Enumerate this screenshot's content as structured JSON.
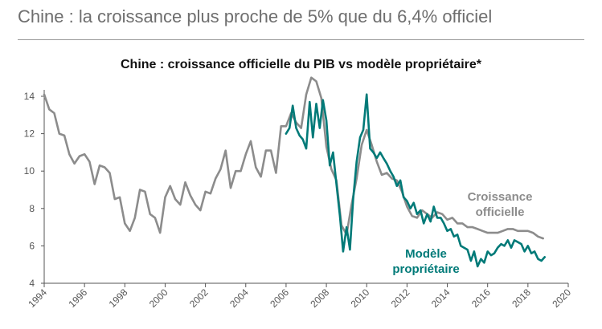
{
  "header": {
    "title": "Chine : la croissance plus proche de 5% que du 6,4% officiel"
  },
  "chart_data": {
    "type": "line",
    "title": "Chine : croissance officielle du PIB vs modèle propriétaire*",
    "xlabel": "",
    "ylabel": "",
    "xlim": [
      1994,
      2020
    ],
    "ylim": [
      4,
      14
    ],
    "x_ticks": [
      "1994",
      "1996",
      "1998",
      "2000",
      "2002",
      "2004",
      "2006",
      "2008",
      "2010",
      "2012",
      "2014",
      "2016",
      "2018",
      "2020"
    ],
    "y_ticks": [
      "4",
      "6",
      "8",
      "10",
      "12",
      "14"
    ],
    "grid": false,
    "colors": {
      "official": "#8c8c8c",
      "model": "#007a78",
      "axis": "#555555"
    },
    "series": [
      {
        "name": "Croissance officielle",
        "label_lines": [
          "Croissance",
          "officielle"
        ],
        "x": [
          1994.0,
          1994.25,
          1994.5,
          1994.75,
          1995.0,
          1995.25,
          1995.5,
          1995.75,
          1996.0,
          1996.25,
          1996.5,
          1996.75,
          1997.0,
          1997.25,
          1997.5,
          1997.75,
          1998.0,
          1998.25,
          1998.5,
          1998.75,
          1999.0,
          1999.25,
          1999.5,
          1999.75,
          2000.0,
          2000.25,
          2000.5,
          2000.75,
          2001.0,
          2001.25,
          2001.5,
          2001.75,
          2002.0,
          2002.25,
          2002.5,
          2002.75,
          2003.0,
          2003.25,
          2003.5,
          2003.75,
          2004.0,
          2004.25,
          2004.5,
          2004.75,
          2005.0,
          2005.25,
          2005.5,
          2005.75,
          2006.0,
          2006.25,
          2006.5,
          2006.75,
          2007.0,
          2007.25,
          2007.5,
          2007.75,
          2008.0,
          2008.25,
          2008.5,
          2008.75,
          2009.0,
          2009.25,
          2009.5,
          2009.75,
          2010.0,
          2010.25,
          2010.5,
          2010.75,
          2011.0,
          2011.25,
          2011.5,
          2011.75,
          2012.0,
          2012.25,
          2012.5,
          2012.75,
          2013.0,
          2013.25,
          2013.5,
          2013.75,
          2014.0,
          2014.25,
          2014.5,
          2014.75,
          2015.0,
          2015.25,
          2015.5,
          2015.75,
          2016.0,
          2016.25,
          2016.5,
          2016.75,
          2017.0,
          2017.25,
          2017.5,
          2017.75,
          2018.0,
          2018.25,
          2018.5,
          2018.75
        ],
        "values": [
          14.1,
          13.3,
          13.1,
          12.0,
          11.9,
          10.9,
          10.4,
          10.8,
          10.9,
          10.5,
          9.3,
          10.3,
          10.2,
          9.9,
          8.5,
          8.6,
          7.2,
          6.8,
          7.5,
          9.0,
          8.9,
          7.7,
          7.5,
          6.7,
          8.6,
          9.2,
          8.5,
          8.2,
          9.4,
          8.7,
          8.2,
          7.9,
          8.9,
          8.8,
          9.6,
          10.1,
          11.1,
          9.1,
          10.0,
          10.0,
          10.9,
          11.6,
          10.2,
          9.7,
          11.1,
          11.1,
          9.9,
          12.4,
          12.4,
          13.1,
          12.6,
          12.3,
          14.1,
          15.0,
          14.8,
          13.9,
          11.3,
          10.1,
          9.5,
          7.1,
          6.6,
          8.2,
          9.6,
          11.4,
          12.2,
          11.4,
          10.5,
          9.8,
          9.9,
          9.6,
          9.5,
          8.9,
          8.1,
          7.6,
          7.5,
          7.9,
          7.7,
          7.5,
          7.8,
          7.7,
          7.4,
          7.5,
          7.2,
          7.2,
          7.0,
          7.0,
          6.9,
          6.8,
          6.7,
          6.7,
          6.7,
          6.8,
          6.9,
          6.9,
          6.8,
          6.8,
          6.8,
          6.7,
          6.5,
          6.4
        ]
      },
      {
        "name": "Modèle propriétaire",
        "label_lines": [
          "Modèle",
          "propriétaire"
        ],
        "x": [
          2006.0,
          2006.17,
          2006.33,
          2006.5,
          2006.67,
          2006.83,
          2007.0,
          2007.17,
          2007.33,
          2007.5,
          2007.67,
          2007.83,
          2008.0,
          2008.17,
          2008.33,
          2008.5,
          2008.67,
          2008.83,
          2009.0,
          2009.17,
          2009.33,
          2009.5,
          2009.67,
          2009.83,
          2010.0,
          2010.17,
          2010.33,
          2010.5,
          2010.67,
          2010.83,
          2011.0,
          2011.17,
          2011.33,
          2011.5,
          2011.67,
          2011.83,
          2012.0,
          2012.17,
          2012.33,
          2012.5,
          2012.67,
          2012.83,
          2013.0,
          2013.17,
          2013.33,
          2013.5,
          2013.67,
          2013.83,
          2014.0,
          2014.17,
          2014.33,
          2014.5,
          2014.67,
          2014.83,
          2015.0,
          2015.17,
          2015.33,
          2015.5,
          2015.67,
          2015.83,
          2016.0,
          2016.17,
          2016.33,
          2016.5,
          2016.67,
          2016.83,
          2017.0,
          2017.17,
          2017.33,
          2017.5,
          2017.67,
          2017.83,
          2018.0,
          2018.17,
          2018.33,
          2018.5,
          2018.67,
          2018.83
        ],
        "values": [
          12.0,
          12.3,
          13.5,
          12.3,
          11.9,
          11.7,
          11.2,
          13.7,
          11.8,
          13.6,
          12.3,
          13.8,
          12.7,
          10.3,
          11.0,
          9.3,
          7.6,
          5.7,
          7.0,
          5.8,
          8.5,
          10.5,
          11.8,
          12.2,
          14.1,
          11.2,
          11.0,
          10.7,
          11.0,
          10.7,
          10.4,
          10.0,
          9.7,
          9.2,
          9.5,
          8.6,
          8.4,
          8.0,
          8.3,
          7.7,
          7.9,
          7.2,
          7.7,
          7.3,
          8.1,
          7.5,
          7.5,
          7.2,
          6.8,
          6.9,
          6.5,
          6.6,
          6.0,
          5.9,
          5.8,
          5.2,
          5.7,
          4.9,
          5.3,
          5.1,
          5.7,
          5.5,
          5.6,
          5.9,
          6.1,
          6.0,
          6.3,
          5.9,
          6.3,
          6.2,
          6.1,
          5.7,
          6.0,
          5.6,
          5.7,
          5.3,
          5.2,
          5.4
        ]
      }
    ],
    "annotations": [
      "Croissance officielle",
      "Modèle propriétaire"
    ]
  }
}
